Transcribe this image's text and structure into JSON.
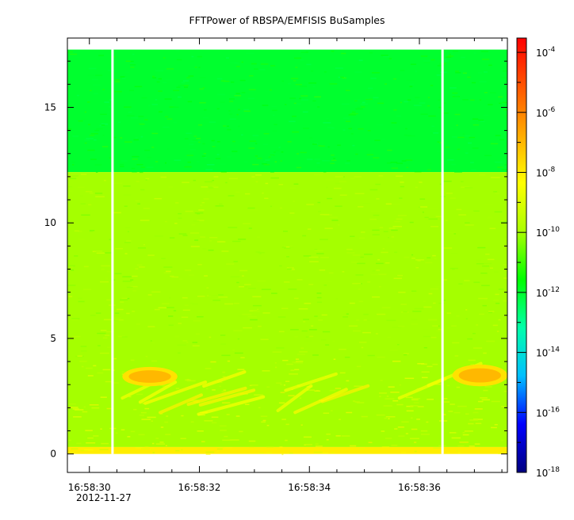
{
  "chart_data": {
    "type": "heatmap",
    "title": "FFTPower of RBSPA/EMFISIS  BuSamples",
    "xlabel": "",
    "ylabel": "",
    "x_ticks": [
      "16:58:30",
      "16:58:32",
      "16:58:34",
      "16:58:36"
    ],
    "x_tick_values_s": [
      30,
      32,
      34,
      36
    ],
    "x_date_label": "2012-11-27",
    "xlim_s": [
      29.6,
      37.6
    ],
    "ylim": [
      -0.8,
      18.0
    ],
    "y_ticks": [
      0,
      5,
      10,
      15
    ],
    "colorbar": {
      "scale": "log",
      "range": [
        1e-18,
        0.0003
      ],
      "ticks": [
        {
          "base": "10",
          "exp": "-4",
          "value": 0.0001
        },
        {
          "base": "10",
          "exp": "-6",
          "value": 1e-06
        },
        {
          "base": "10",
          "exp": "-8",
          "value": 1e-08
        },
        {
          "base": "10",
          "exp": "-10",
          "value": 1e-10
        },
        {
          "base": "10",
          "exp": "-12",
          "value": 1e-12
        },
        {
          "base": "10",
          "exp": "-14",
          "value": 1e-14
        },
        {
          "base": "10",
          "exp": "-16",
          "value": 1e-16
        },
        {
          "base": "10",
          "exp": "-18",
          "value": 1e-18
        }
      ],
      "colors": [
        "#00007f",
        "#0000ff",
        "#00bfff",
        "#00ffaa",
        "#00ff00",
        "#aaff00",
        "#ffff00",
        "#ffaa00",
        "#ff5500",
        "#ff0000"
      ]
    },
    "data_extent_y": [
      0.0,
      17.5
    ],
    "gaps_s": [
      30.42,
      36.42
    ],
    "bands": [
      {
        "y": [
          12.2,
          17.5
        ],
        "level": "1e-12"
      },
      {
        "y": [
          0.3,
          12.2
        ],
        "level": "1e-10"
      },
      {
        "y": [
          0.0,
          0.3
        ],
        "level": "1e-8"
      }
    ],
    "features": [
      {
        "name": "enhancement",
        "t": [
          30.6,
          31.6
        ],
        "y": [
          3.0,
          3.7
        ],
        "level": "1e-7"
      },
      {
        "name": "enhancement",
        "t": [
          36.6,
          37.6
        ],
        "y": [
          3.0,
          3.8
        ],
        "level": "1e-7"
      }
    ]
  }
}
